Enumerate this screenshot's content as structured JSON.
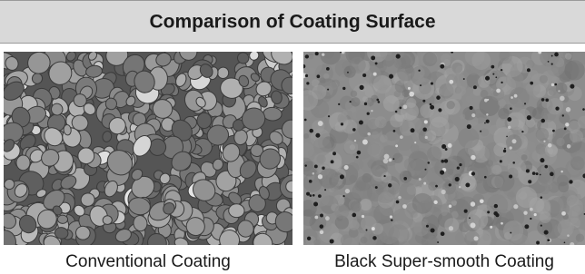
{
  "header": {
    "title": "Comparison of Coating Surface"
  },
  "panels": [
    {
      "caption": "Conventional Coating"
    },
    {
      "caption": "Black Super-smooth Coating"
    }
  ]
}
